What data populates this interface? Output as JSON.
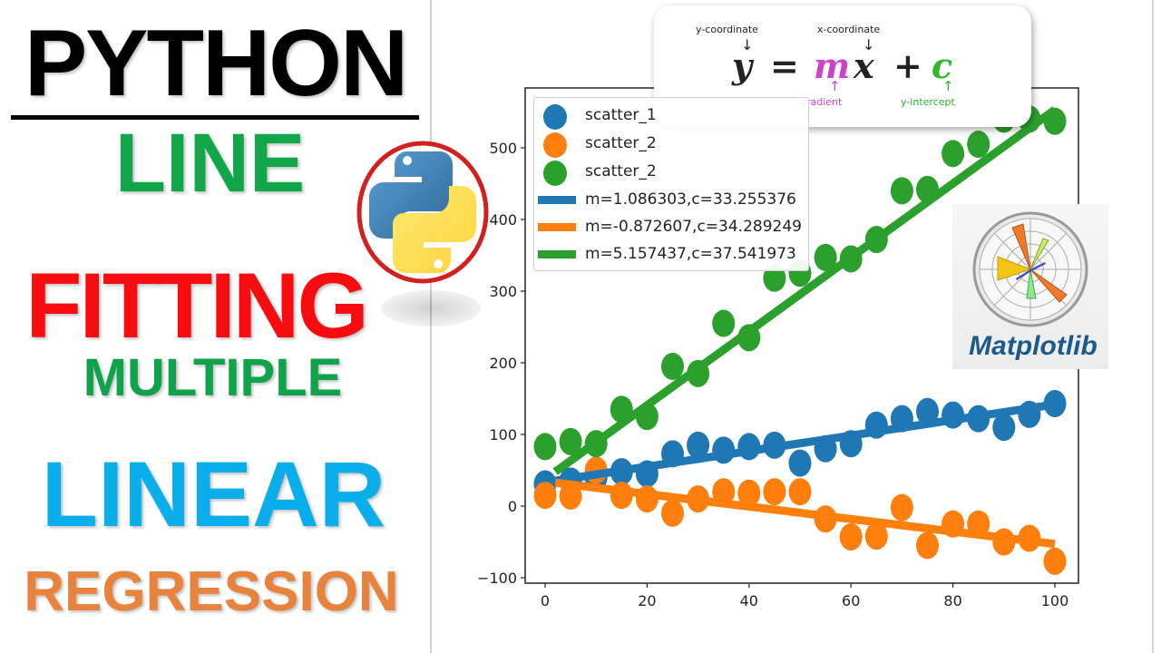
{
  "title_block": {
    "line1": "PYTHON",
    "line2": "LINE",
    "line3": "FITTING",
    "line4": "MULTIPLE",
    "line5": "LINEAR",
    "line6": "REGRESSION",
    "colors": {
      "python": "#000000",
      "line": "#12a64b",
      "fitting": "#f70d10",
      "multiple": "#11a24c",
      "linear": "#0aaeea",
      "regression": "#e7833c"
    }
  },
  "logos": {
    "python_icon": "python-logo",
    "matplotlib_label": "Matplotlib"
  },
  "equation": {
    "y": "y",
    "equals": "=",
    "m": "m",
    "x": "x",
    "plus": "+",
    "c": "c",
    "label_y": "y-coordinate",
    "label_x": "x-coordinate",
    "label_m": "gradient",
    "label_c": "y-intercept",
    "colors": {
      "m": "#cc44cc",
      "c": "#2db82d",
      "text": "#222222"
    }
  },
  "legend": {
    "items": [
      {
        "label": "scatter_1",
        "kind": "marker",
        "color": "#1f77b4"
      },
      {
        "label": "scatter_2",
        "kind": "marker",
        "color": "#ff7f0e"
      },
      {
        "label": "scatter_2",
        "kind": "marker",
        "color": "#2ca02c"
      },
      {
        "label": "m=1.086303,c=33.255376",
        "kind": "line",
        "color": "#1f77b4"
      },
      {
        "label": "m=-0.872607,c=34.289249",
        "kind": "line",
        "color": "#ff7f0e"
      },
      {
        "label": "m=5.157437,c=37.541973",
        "kind": "line",
        "color": "#2ca02c"
      }
    ]
  },
  "chart_data": {
    "type": "scatter",
    "title": "",
    "xlabel": "",
    "ylabel": "",
    "xlim": [
      -4,
      106
    ],
    "ylim": [
      -110,
      585
    ],
    "xticks": [
      0,
      20,
      40,
      60,
      80,
      100
    ],
    "yticks": [
      -100,
      0,
      100,
      200,
      300,
      400,
      500
    ],
    "grid": false,
    "legend_position": "upper left",
    "x": [
      0,
      5,
      10,
      15,
      20,
      25,
      30,
      35,
      40,
      45,
      50,
      55,
      60,
      65,
      70,
      75,
      80,
      85,
      90,
      95,
      100
    ],
    "series": [
      {
        "name": "scatter_1",
        "type": "scatter",
        "color": "#1f77b4",
        "values": [
          31,
          35,
          40,
          48,
          45,
          73,
          85,
          78,
          83,
          85,
          60,
          80,
          87,
          113,
          122,
          132,
          127,
          122,
          110,
          128,
          143
        ]
      },
      {
        "name": "scatter_2",
        "type": "scatter",
        "color": "#ff7f0e",
        "values": [
          15,
          14,
          50,
          15,
          10,
          -10,
          10,
          20,
          18,
          20,
          20,
          -18,
          -43,
          -42,
          -2,
          -55,
          -25,
          -25,
          -50,
          -45,
          -77
        ]
      },
      {
        "name": "scatter_2",
        "type": "scatter",
        "color": "#2ca02c",
        "values": [
          83,
          90,
          87,
          135,
          125,
          195,
          185,
          255,
          235,
          318,
          325,
          347,
          345,
          372,
          440,
          442,
          492,
          505,
          540,
          540,
          537
        ]
      },
      {
        "name": "m=1.086303,c=33.255376",
        "type": "line",
        "color": "#1f77b4",
        "m": 1.086303,
        "c": 33.255376
      },
      {
        "name": "m=-0.872607,c=34.289249",
        "type": "line",
        "color": "#ff7f0e",
        "m": -0.872607,
        "c": 34.289249
      },
      {
        "name": "m=5.157437,c=37.541973",
        "type": "line",
        "color": "#2ca02c",
        "m": 5.157437,
        "c": 37.541973
      }
    ]
  }
}
